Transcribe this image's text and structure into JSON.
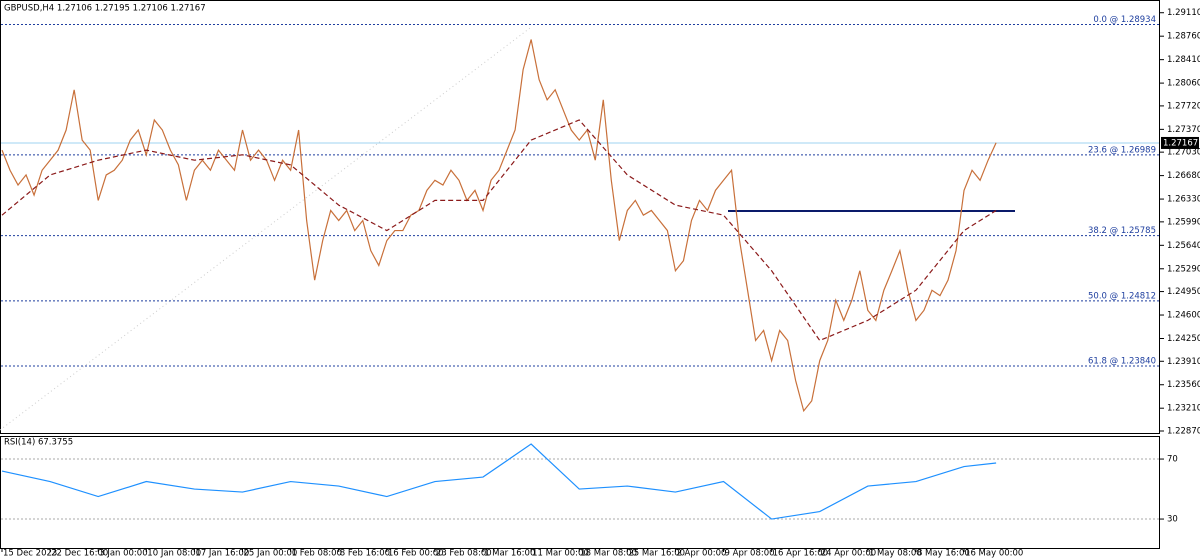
{
  "chart_data": [
    {
      "type": "line",
      "title": "GBPUSD,H4  1.27106 1.27195 1.27106 1.27167",
      "categories": [
        "15 Dec 2023",
        null,
        null,
        null,
        null,
        null,
        "22 Dec 16:00",
        null,
        null,
        null,
        null,
        null,
        "3 Jan 00:00",
        null,
        null,
        null,
        null,
        null,
        "10 Jan 08:00",
        null,
        null,
        null,
        null,
        null,
        "17 Jan 16:00",
        null,
        null,
        null,
        null,
        null,
        "25 Jan 00:00",
        null,
        null,
        null,
        null,
        null,
        "1 Feb 08:00",
        null,
        null,
        null,
        null,
        null,
        "8 Feb 16:00",
        null,
        null,
        null,
        null,
        null,
        "16 Feb 00:00",
        null,
        null,
        null,
        null,
        null,
        "23 Feb 08:00",
        null,
        null,
        null,
        null,
        null,
        "1 Mar 16:00",
        null,
        null,
        null,
        null,
        null,
        "11 Mar 00:00",
        null,
        null,
        null,
        null,
        null,
        "18 Mar 08:00",
        null,
        null,
        null,
        null,
        null,
        "25 Mar 16:00",
        null,
        null,
        null,
        null,
        null,
        "2 Apr 00:00",
        null,
        null,
        null,
        null,
        null,
        "9 Apr 08:00",
        null,
        null,
        null,
        null,
        null,
        "16 Apr 16:00",
        null,
        null,
        null,
        null,
        null,
        "24 Apr 00:00",
        null,
        null,
        null,
        null,
        null,
        "1 May 08:00",
        null,
        null,
        null,
        null,
        null,
        "8 May 16:00",
        null,
        null,
        null,
        null,
        null,
        "16 May 00:00",
        null,
        null,
        null,
        null
      ],
      "series": [
        {
          "color": "#c8703a",
          "values": [
            1.2706,
            1.2676,
            1.2654,
            1.2669,
            1.2639,
            1.2676,
            1.2691,
            1.2706,
            1.2736,
            1.2796,
            1.2721,
            1.2706,
            1.2631,
            1.2669,
            1.2676,
            1.2691,
            1.2721,
            1.2736,
            1.2699,
            1.2751,
            1.2736,
            1.2706,
            1.2684,
            1.2631,
            1.2676,
            1.2691,
            1.2676,
            1.2706,
            1.2691,
            1.2676,
            1.2736,
            1.2691,
            1.2706,
            1.2691,
            1.2661,
            1.2691,
            1.2676,
            1.2736,
            1.2601,
            1.2512,
            1.2571,
            1.2616,
            1.2601,
            1.2616,
            1.2586,
            1.2601,
            1.2556,
            1.2534,
            1.2571,
            1.2586,
            1.2586,
            1.2609,
            1.2616,
            1.2646,
            1.2661,
            1.2654,
            1.2676,
            1.2661,
            1.2631,
            1.2646,
            1.2616,
            1.2661,
            1.2676,
            1.2706,
            1.2736,
            1.2826,
            1.2871,
            1.2811,
            1.2781,
            1.2796,
            1.2766,
            1.2736,
            1.2721,
            1.2736,
            1.2691,
            1.2781,
            1.2661,
            1.2571,
            1.2616,
            1.2631,
            1.2609,
            1.2616,
            1.2601,
            1.2586,
            1.2526,
            1.2541,
            1.2601,
            1.2631,
            1.2616,
            1.2646,
            1.2661,
            1.2676,
            1.2571,
            1.2497,
            1.2422,
            1.2437,
            1.2392,
            1.2437,
            1.2422,
            1.2362,
            1.2317,
            1.2332,
            1.2392,
            1.2422,
            1.2482,
            1.2452,
            1.2482,
            1.2526,
            1.2467,
            1.2452,
            1.2497,
            1.2526,
            1.2556,
            1.2497,
            1.2452,
            1.2467,
            1.2497,
            1.2489,
            1.2512,
            1.2556,
            1.2646,
            1.2676,
            1.2661,
            1.2691,
            1.2717
          ]
        },
        {
          "color": "#8b1a1a",
          "x": [
            0,
            6,
            12,
            18,
            24,
            30,
            36,
            42,
            48,
            54,
            60,
            66,
            72,
            78,
            84,
            90,
            96,
            102,
            108,
            114,
            120,
            124
          ],
          "values": [
            1.2609,
            1.2669,
            1.2691,
            1.2706,
            1.2691,
            1.2699,
            1.2684,
            1.2624,
            1.2586,
            1.2631,
            1.2631,
            1.2721,
            1.2751,
            1.2669,
            1.2624,
            1.2609,
            1.2526,
            1.2422,
            1.2452,
            1.2497,
            1.2586,
            1.2616
          ]
        }
      ],
      "levels": [
        {
          "value": 1.28934,
          "label": "0.0 @ 1.28934"
        },
        {
          "value": 1.26989,
          "label": "23.6 @ 1.26989"
        },
        {
          "value": 1.25785,
          "label": "38.2 @ 1.25785"
        },
        {
          "value": 1.24812,
          "label": "50.0 @ 1.24812"
        },
        {
          "value": 1.2384,
          "label": "61.8 @ 1.23840"
        }
      ],
      "last_price": 1.27167,
      "ylim": [
        1.2284,
        1.2927
      ],
      "yticks": [
        {
          "value": 1.2911,
          "label": "1.29110"
        },
        {
          "value": 1.2876,
          "label": "1.28760"
        },
        {
          "value": 1.2841,
          "label": "1.28410"
        },
        {
          "value": 1.2806,
          "label": "1.28060"
        },
        {
          "value": 1.2772,
          "label": "1.27720"
        },
        {
          "value": 1.2737,
          "label": "1.27370"
        },
        {
          "value": 1.2703,
          "label": "1.27030"
        },
        {
          "value": 1.2668,
          "label": "1.26680"
        },
        {
          "value": 1.2633,
          "label": "1.26330"
        },
        {
          "value": 1.2599,
          "label": "1.25990"
        },
        {
          "value": 1.2564,
          "label": "1.25640"
        },
        {
          "value": 1.2529,
          "label": "1.25290"
        },
        {
          "value": 1.2495,
          "label": "1.24950"
        },
        {
          "value": 1.246,
          "label": "1.24600"
        },
        {
          "value": 1.2425,
          "label": "1.24250"
        },
        {
          "value": 1.2391,
          "label": "1.23910"
        },
        {
          "value": 1.2356,
          "label": "1.23560"
        },
        {
          "value": 1.2321,
          "label": "1.23210"
        },
        {
          "value": 1.2287,
          "label": "1.22870"
        }
      ]
    },
    {
      "type": "line",
      "title": "RSI(14) 67.3755",
      "series": [
        {
          "color": "#1e90ff",
          "x": [
            0,
            6,
            12,
            18,
            24,
            30,
            36,
            42,
            48,
            54,
            60,
            66,
            72,
            78,
            84,
            90,
            96,
            102,
            108,
            114,
            120,
            124
          ],
          "values": [
            62,
            55,
            45,
            55,
            50,
            48,
            55,
            52,
            45,
            55,
            58,
            80,
            50,
            52,
            48,
            55,
            30,
            35,
            52,
            55,
            65,
            67.3755
          ]
        }
      ],
      "ylim": [
        10.7,
        84.7
      ],
      "yticks": [
        30,
        70
      ],
      "grid": true
    }
  ]
}
